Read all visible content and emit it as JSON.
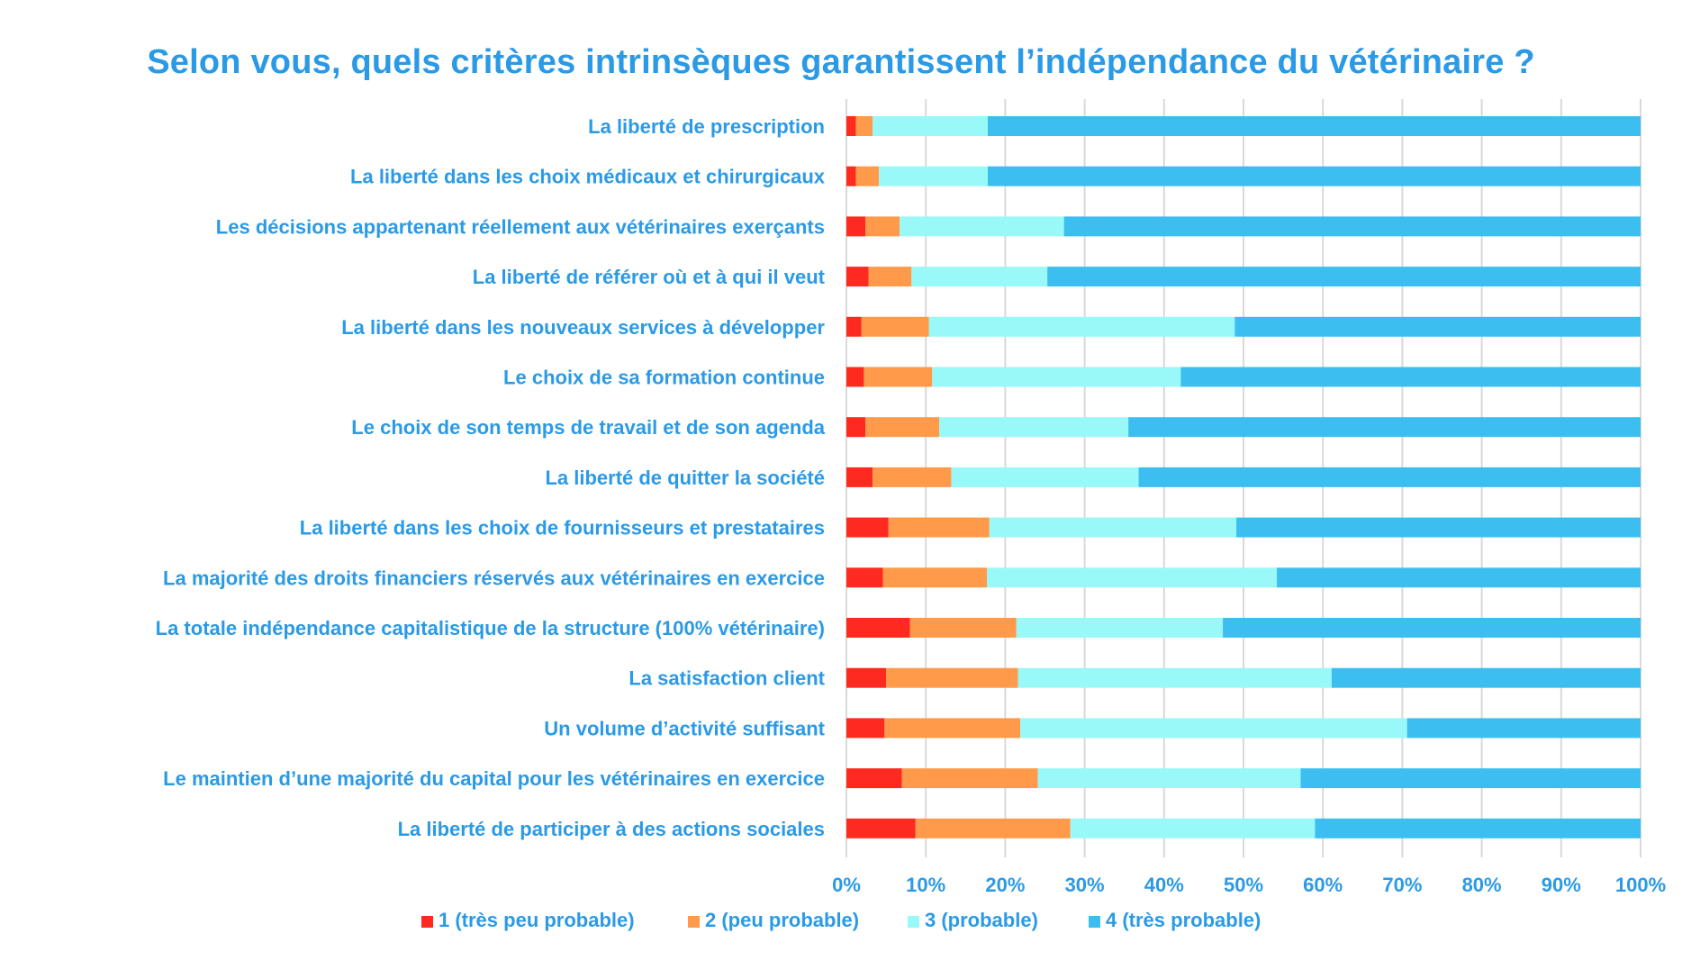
{
  "chart_data": {
    "type": "bar",
    "orientation": "horizontal",
    "stacked": "percent",
    "title": "Selon vous, quels critères intrinsèques garantissent l’indépendance du vétérinaire ?",
    "categories": [
      "La liberté de prescription",
      "La liberté dans les choix médicaux et chirurgicaux",
      "Les décisions appartenant réellement aux vétérinaires exerçants",
      "La liberté de référer où et à qui il veut",
      "La liberté dans les nouveaux services à développer",
      "Le choix de sa formation continue",
      "Le choix de son temps de travail et de son agenda",
      "La liberté de quitter la société",
      "La liberté dans les choix de fournisseurs et prestataires",
      "La majorité des droits financiers réservés aux vétérinaires en exercice",
      "La totale indépendance capitalistique de la structure (100% vétérinaire)",
      "La satisfaction client",
      "Un volume d’activité suffisant",
      "Le maintien d’une majorité du capital pour les vétérinaires en exercice",
      "La liberté de participer à des actions sociales"
    ],
    "series": [
      {
        "name": "1 (très peu probable)",
        "color": "#ff2a1f",
        "values": [
          1.2,
          1.2,
          2.4,
          2.8,
          1.9,
          2.2,
          2.4,
          3.3,
          5.3,
          4.6,
          8.0,
          5.0,
          4.8,
          7.0,
          8.7
        ]
      },
      {
        "name": "2 (peu probable)",
        "color": "#ff9a4a",
        "values": [
          2.1,
          2.9,
          4.3,
          5.4,
          8.5,
          8.6,
          9.3,
          9.9,
          12.7,
          13.1,
          13.4,
          16.6,
          17.1,
          17.1,
          19.5
        ]
      },
      {
        "name": "3 (probable)",
        "color": "#99f8f8",
        "values": [
          14.5,
          13.7,
          20.7,
          17.1,
          38.5,
          31.3,
          23.8,
          23.6,
          31.1,
          36.5,
          26.0,
          39.5,
          48.7,
          33.1,
          30.8
        ]
      },
      {
        "name": "4 (très probable)",
        "color": "#3cbff0",
        "values": [
          82.2,
          82.2,
          72.6,
          74.7,
          51.1,
          57.9,
          64.5,
          63.2,
          50.9,
          45.8,
          52.6,
          38.9,
          29.4,
          42.8,
          41.0
        ]
      }
    ],
    "xlim": [
      0,
      100
    ],
    "x_ticks": [
      "0%",
      "10%",
      "20%",
      "30%",
      "40%",
      "50%",
      "60%",
      "70%",
      "80%",
      "90%",
      "100%"
    ],
    "grid": "vertical",
    "legend_position": "bottom",
    "colors": {
      "title": "#2b9ae6",
      "labels": "#2b9ae6",
      "gridline": "#d9d9d9"
    }
  }
}
